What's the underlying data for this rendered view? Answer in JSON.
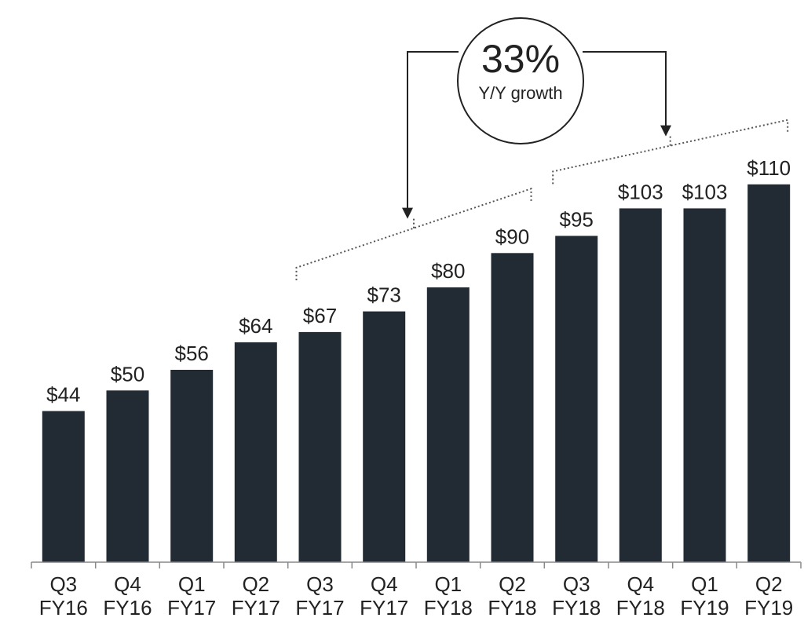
{
  "chart_data": {
    "type": "bar",
    "categories": [
      [
        "Q3",
        "FY16"
      ],
      [
        "Q4",
        "FY16"
      ],
      [
        "Q1",
        "FY17"
      ],
      [
        "Q2",
        "FY17"
      ],
      [
        "Q3",
        "FY17"
      ],
      [
        "Q4",
        "FY17"
      ],
      [
        "Q1",
        "FY18"
      ],
      [
        "Q2",
        "FY18"
      ],
      [
        "Q3",
        "FY18"
      ],
      [
        "Q4",
        "FY18"
      ],
      [
        "Q1",
        "FY19"
      ],
      [
        "Q2",
        "FY19"
      ]
    ],
    "values": [
      44,
      50,
      56,
      64,
      67,
      73,
      80,
      90,
      95,
      103,
      103,
      110
    ],
    "value_labels": [
      "$44",
      "$50",
      "$56",
      "$64",
      "$67",
      "$73",
      "$80",
      "$90",
      "$95",
      "$103",
      "$103",
      "$110"
    ],
    "title": "",
    "xlabel": "",
    "ylabel": "",
    "ylim": [
      0,
      110
    ],
    "grid": false,
    "bar_color": "#222b33",
    "annotation": {
      "value": "33%",
      "text": "Y/Y growth",
      "from_range": [
        "Q3 FY17",
        "Q2 FY18"
      ],
      "to_range": [
        "Q3 FY18",
        "Q2 FY19"
      ]
    }
  }
}
